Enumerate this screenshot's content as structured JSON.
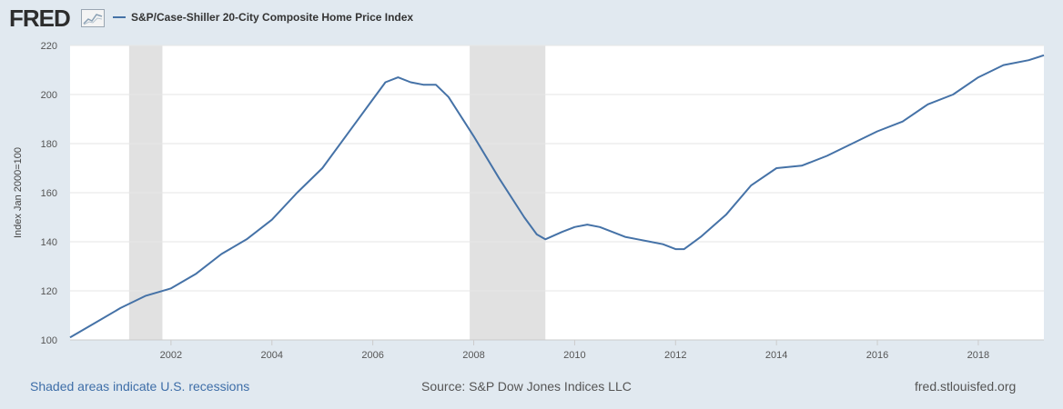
{
  "header": {
    "logo_text": "FRED",
    "logo_icon": "line-chart-icon"
  },
  "footer": {
    "recession_note": "Shaded areas indicate U.S. recessions",
    "source": "Source: S&P Dow Jones Indices LLC",
    "site": "fred.stlouisfed.org"
  },
  "colors": {
    "series": "#4572a7",
    "recession": "#e1e1e1",
    "grid": "#e6e6e6",
    "frame_bg": "#e1e9f0",
    "plot_bg": "#ffffff",
    "link": "#3e6ea8"
  },
  "chart_data": {
    "type": "line",
    "title": "S&P/Case-Shiller 20-City Composite Home Price Index",
    "xlabel": "",
    "ylabel": "Index Jan 2000=100",
    "xlim": [
      2000.0,
      2019.3
    ],
    "ylim": [
      100,
      220
    ],
    "x_ticks": [
      2002,
      2004,
      2006,
      2008,
      2010,
      2012,
      2014,
      2016,
      2018
    ],
    "x_tick_labels": [
      "2002",
      "2004",
      "2006",
      "2008",
      "2010",
      "2012",
      "2014",
      "2016",
      "2018"
    ],
    "y_ticks": [
      100,
      120,
      140,
      160,
      180,
      200,
      220
    ],
    "y_tick_labels": [
      "100",
      "120",
      "140",
      "160",
      "180",
      "200",
      "220"
    ],
    "grid": "horizontal",
    "recessions": [
      [
        2001.17,
        2001.83
      ],
      [
        2007.92,
        2009.42
      ]
    ],
    "series": [
      {
        "name": "S&P/Case-Shiller 20-City Composite Home Price Index",
        "x": [
          2000.0,
          2000.5,
          2001.0,
          2001.5,
          2002.0,
          2002.5,
          2003.0,
          2003.5,
          2004.0,
          2004.5,
          2005.0,
          2005.5,
          2006.0,
          2006.25,
          2006.5,
          2006.75,
          2007.0,
          2007.25,
          2007.5,
          2008.0,
          2008.5,
          2009.0,
          2009.25,
          2009.42,
          2009.75,
          2010.0,
          2010.25,
          2010.5,
          2010.75,
          2011.0,
          2011.25,
          2011.5,
          2011.75,
          2012.0,
          2012.17,
          2012.5,
          2013.0,
          2013.5,
          2014.0,
          2014.5,
          2015.0,
          2015.5,
          2016.0,
          2016.5,
          2017.0,
          2017.5,
          2018.0,
          2018.5,
          2019.0,
          2019.3
        ],
        "values": [
          101,
          107,
          113,
          118,
          121,
          127,
          135,
          141,
          149,
          160,
          170,
          184,
          198,
          205,
          207,
          205,
          204,
          204,
          199,
          183,
          166,
          150,
          143,
          141,
          144,
          146,
          147,
          146,
          144,
          142,
          141,
          140,
          139,
          137,
          137,
          142,
          151,
          163,
          170,
          171,
          175,
          180,
          185,
          189,
          196,
          200,
          207,
          212,
          214,
          216
        ]
      }
    ]
  }
}
